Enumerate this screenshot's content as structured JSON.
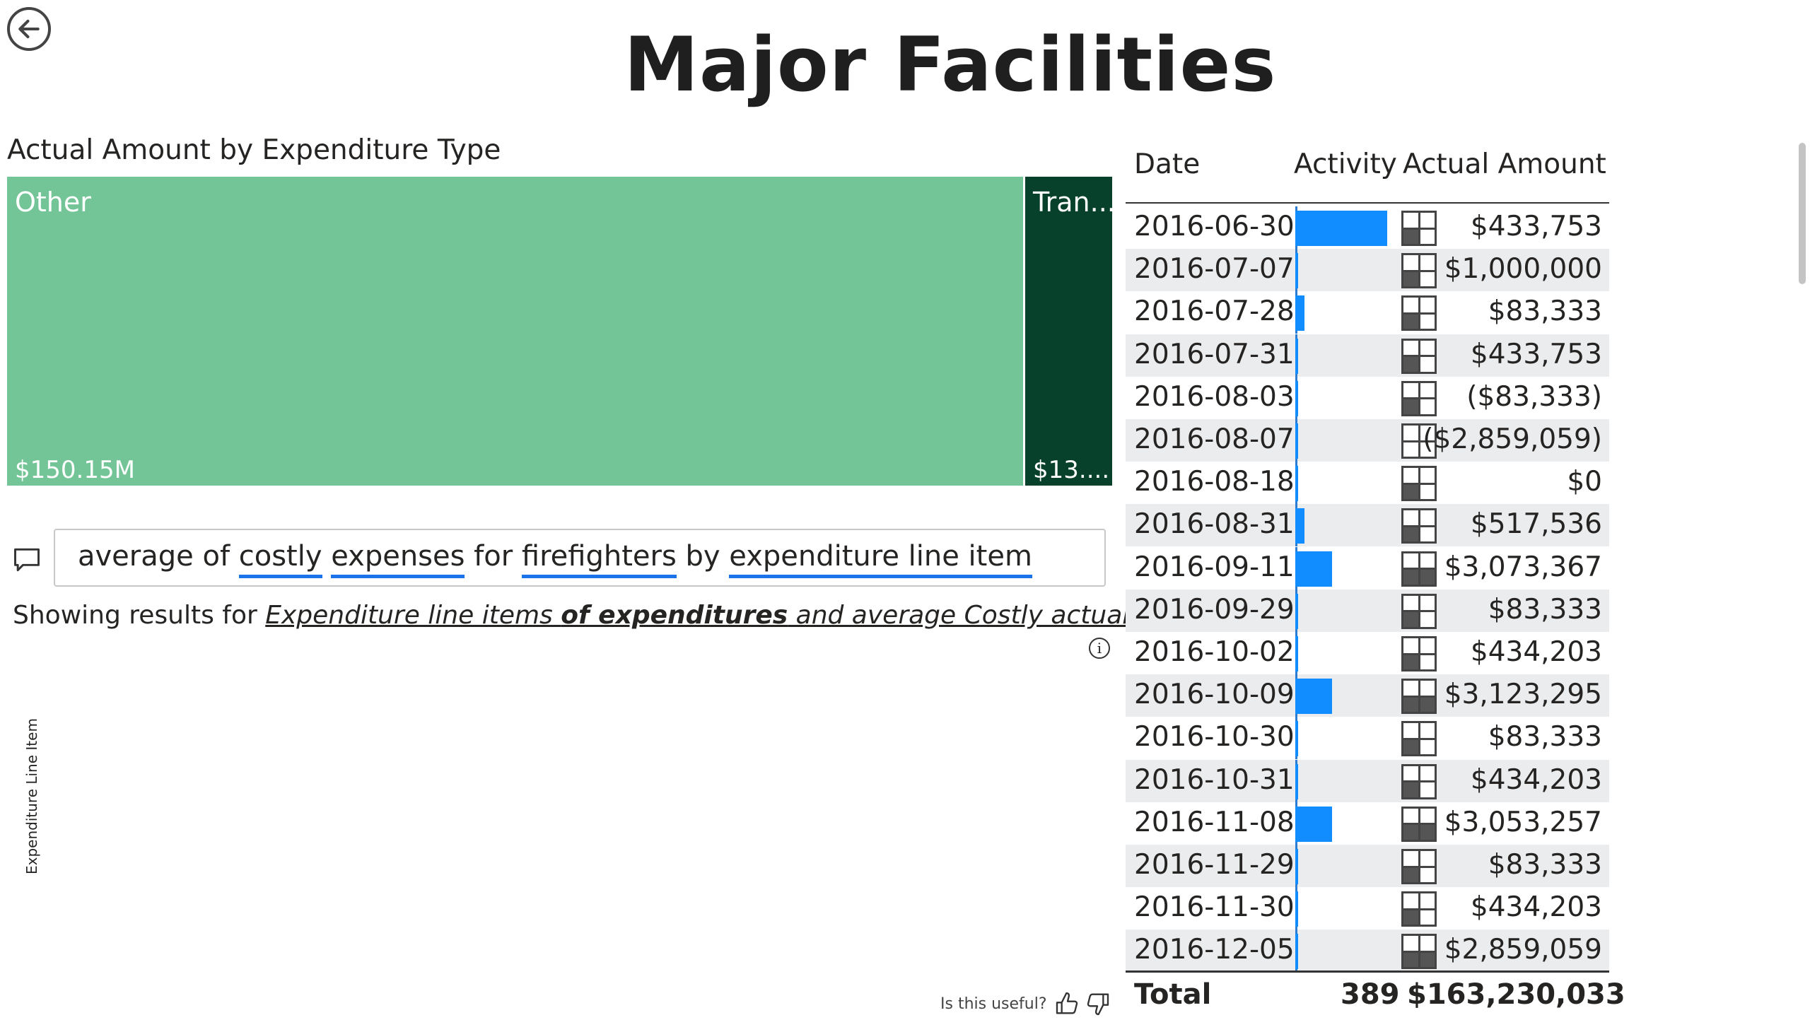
{
  "page": {
    "title": "Major Facilities"
  },
  "treemap": {
    "title": "Actual Amount by Expenditure Type",
    "tiles": [
      {
        "label": "Other",
        "value": "$150.15M",
        "color": "#73c597"
      },
      {
        "label": "Tran...",
        "value": "$13....",
        "color": "#07402b"
      }
    ]
  },
  "qa": {
    "query_parts": [
      {
        "text": "average of ",
        "underline": false
      },
      {
        "text": "costly",
        "underline": true
      },
      {
        "text": " ",
        "underline": false
      },
      {
        "text": "expenses",
        "underline": true
      },
      {
        "text": " for ",
        "underline": false
      },
      {
        "text": "firefighters",
        "underline": true
      },
      {
        "text": " by ",
        "underline": false
      },
      {
        "text": "expenditure line item",
        "underline": true
      }
    ],
    "showing_prefix": "Showing results for ",
    "showing_parts": [
      {
        "text": "Expenditure line items ",
        "bold": false
      },
      {
        "text": "of expenditures",
        "bold": true
      },
      {
        "text": " and average Costly actual amount",
        "bold": false
      }
    ],
    "y_axis_label": "Expenditure Line Item",
    "feedback_prompt": "Is this useful?"
  },
  "table": {
    "columns": [
      "Date",
      "Activity",
      "Actual Amount"
    ],
    "rows": [
      {
        "date": "2016-06-30",
        "activity": 1.0,
        "amount": "$433,753",
        "tile": [
          0,
          0,
          1,
          0
        ]
      },
      {
        "date": "2016-07-07",
        "activity": 0.03,
        "amount": "$1,000,000",
        "tile": [
          0,
          0,
          1,
          0
        ]
      },
      {
        "date": "2016-07-28",
        "activity": 0.1,
        "amount": "$83,333",
        "tile": [
          0,
          0,
          1,
          0
        ]
      },
      {
        "date": "2016-07-31",
        "activity": 0.03,
        "amount": "$433,753",
        "tile": [
          0,
          0,
          1,
          0
        ]
      },
      {
        "date": "2016-08-03",
        "activity": 0.03,
        "amount": "($83,333)",
        "tile": [
          0,
          0,
          1,
          0
        ]
      },
      {
        "date": "2016-08-07",
        "activity": 0.03,
        "amount": "($2,859,059)",
        "tile": [
          0,
          0,
          0,
          0
        ]
      },
      {
        "date": "2016-08-18",
        "activity": 0.03,
        "amount": "$0",
        "tile": [
          0,
          0,
          1,
          0
        ]
      },
      {
        "date": "2016-08-31",
        "activity": 0.1,
        "amount": "$517,536",
        "tile": [
          0,
          0,
          1,
          0
        ]
      },
      {
        "date": "2016-09-11",
        "activity": 0.4,
        "amount": "$3,073,367",
        "tile": [
          0,
          0,
          1,
          1
        ]
      },
      {
        "date": "2016-09-29",
        "activity": 0.03,
        "amount": "$83,333",
        "tile": [
          0,
          0,
          1,
          0
        ]
      },
      {
        "date": "2016-10-02",
        "activity": 0.03,
        "amount": "$434,203",
        "tile": [
          0,
          0,
          1,
          0
        ]
      },
      {
        "date": "2016-10-09",
        "activity": 0.4,
        "amount": "$3,123,295",
        "tile": [
          0,
          0,
          1,
          1
        ]
      },
      {
        "date": "2016-10-30",
        "activity": 0.03,
        "amount": "$83,333",
        "tile": [
          0,
          0,
          1,
          0
        ]
      },
      {
        "date": "2016-10-31",
        "activity": 0.03,
        "amount": "$434,203",
        "tile": [
          0,
          0,
          1,
          0
        ]
      },
      {
        "date": "2016-11-08",
        "activity": 0.4,
        "amount": "$3,053,257",
        "tile": [
          0,
          0,
          1,
          1
        ]
      },
      {
        "date": "2016-11-29",
        "activity": 0.03,
        "amount": "$83,333",
        "tile": [
          0,
          0,
          1,
          0
        ]
      },
      {
        "date": "2016-11-30",
        "activity": 0.03,
        "amount": "$434,203",
        "tile": [
          0,
          0,
          1,
          0
        ]
      },
      {
        "date": "2016-12-05",
        "activity": 0.03,
        "amount": "$2,859,059",
        "tile": [
          0,
          0,
          1,
          1
        ]
      }
    ],
    "total": {
      "label": "Total",
      "count": "389",
      "amount": "$163,230,033"
    }
  },
  "icons": {
    "back": "back-arrow-icon",
    "chat": "chat-bubble-icon",
    "info": "info-icon",
    "thumbs_up": "thumbs-up-icon",
    "thumbs_down": "thumbs-down-icon"
  },
  "colors": {
    "activity_bar": "#118dff",
    "query_underline": "#1a73e8"
  }
}
